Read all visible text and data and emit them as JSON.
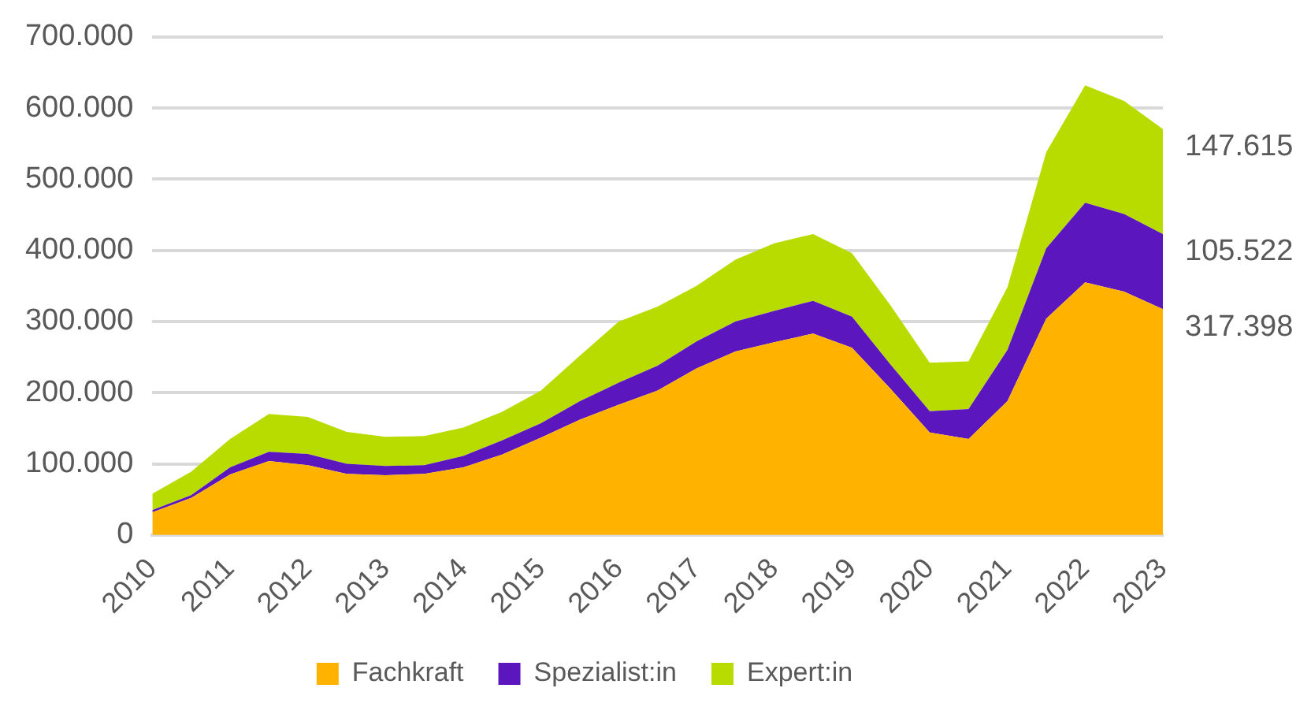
{
  "chart_data": {
    "type": "area",
    "stacked": true,
    "categories": [
      "2010",
      null,
      "2011",
      null,
      "2012",
      null,
      "2013",
      null,
      "2014",
      null,
      "2015",
      null,
      "2016",
      null,
      "2017",
      null,
      "2018",
      null,
      "2019",
      null,
      "2020",
      null,
      "2021",
      null,
      "2022",
      null,
      "2023"
    ],
    "series": [
      {
        "name": "Fachkraft",
        "color": "#ffb300",
        "values": [
          32000,
          52000,
          85000,
          104000,
          98000,
          86000,
          84000,
          86000,
          95000,
          113000,
          137000,
          162000,
          183000,
          203000,
          234000,
          258000,
          271000,
          283000,
          263000,
          205000,
          144000,
          135000,
          188000,
          304000,
          355000,
          342000,
          317398
        ],
        "value_labels": [
          null,
          null,
          null,
          null,
          null,
          null,
          null,
          null,
          null,
          null,
          null,
          null,
          null,
          null,
          null,
          null,
          null,
          null,
          null,
          null,
          null,
          null,
          null,
          null,
          null,
          null,
          "317.398"
        ]
      },
      {
        "name": "Spezialist:in",
        "color": "#5b17bd",
        "values": [
          3000,
          4000,
          10000,
          13000,
          16000,
          14000,
          13000,
          12000,
          16000,
          20000,
          20000,
          26000,
          31000,
          35000,
          38000,
          42000,
          44000,
          46000,
          44000,
          34000,
          30000,
          42000,
          72000,
          99000,
          112000,
          109000,
          105522
        ],
        "value_labels": [
          null,
          null,
          null,
          null,
          null,
          null,
          null,
          null,
          null,
          null,
          null,
          null,
          null,
          null,
          null,
          null,
          null,
          null,
          null,
          null,
          null,
          null,
          null,
          null,
          null,
          null,
          "105.522"
        ]
      },
      {
        "name": "Expert:in",
        "color": "#b8dc00",
        "values": [
          23000,
          33000,
          40000,
          53000,
          52000,
          45000,
          41000,
          41000,
          40000,
          40000,
          46000,
          64000,
          86000,
          83000,
          78000,
          87000,
          95000,
          94000,
          89000,
          83000,
          68000,
          67000,
          88000,
          135000,
          165000,
          159000,
          147615
        ],
        "value_labels": [
          null,
          null,
          null,
          null,
          null,
          null,
          null,
          null,
          null,
          null,
          null,
          null,
          null,
          null,
          null,
          null,
          null,
          null,
          null,
          null,
          null,
          null,
          null,
          null,
          null,
          null,
          "147.615"
        ]
      }
    ],
    "ylim": [
      0,
      700000
    ],
    "yticks": [
      {
        "value": 0,
        "label": "0"
      },
      {
        "value": 100000,
        "label": "100.000"
      },
      {
        "value": 200000,
        "label": "200.000"
      },
      {
        "value": 300000,
        "label": "300.000"
      },
      {
        "value": 400000,
        "label": "400.000"
      },
      {
        "value": 500000,
        "label": "500.000"
      },
      {
        "value": 600000,
        "label": "600.000"
      },
      {
        "value": 700000,
        "label": "700.000"
      }
    ],
    "grid": "y",
    "legend": "bottom"
  }
}
